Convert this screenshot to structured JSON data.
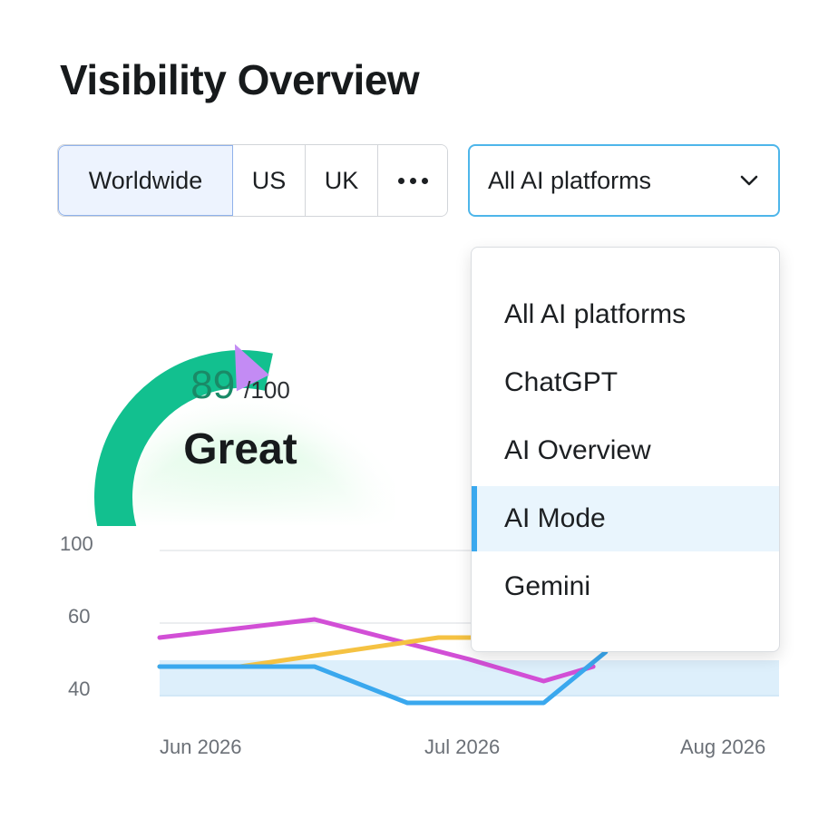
{
  "title": "Visibility Overview",
  "regions": {
    "items": [
      "Worldwide",
      "US",
      "UK"
    ],
    "active": "Worldwide"
  },
  "platform_select": {
    "selected": "All AI platforms"
  },
  "gauge": {
    "score": "89",
    "max": "/100",
    "rating": "Great",
    "score_fraction": 0.89
  },
  "menu": {
    "items": [
      "All AI platforms",
      "ChatGPT",
      "AI Overview",
      "AI Mode",
      "Gemini"
    ],
    "selected": "AI Mode"
  },
  "chart_data": {
    "type": "line",
    "x": [
      "Jun 2026",
      "Jul 2026",
      "Aug 2026"
    ],
    "yticks": [
      "100",
      "60",
      "40"
    ],
    "series": [
      {
        "color": "#d24fd6",
        "points": [
          [
            0,
            56
          ],
          [
            0.25,
            62
          ],
          [
            0.5,
            50
          ],
          [
            0.62,
            44
          ],
          [
            0.7,
            48
          ]
        ]
      },
      {
        "color": "#f5c242",
        "points": [
          [
            0,
            48
          ],
          [
            0.13,
            48
          ],
          [
            0.45,
            56
          ],
          [
            0.58,
            56
          ]
        ]
      },
      {
        "color": "#3aa8ee",
        "points": [
          [
            0,
            48
          ],
          [
            0.25,
            48
          ],
          [
            0.4,
            38
          ],
          [
            0.62,
            38
          ],
          [
            0.72,
            52
          ]
        ]
      }
    ],
    "colors": {
      "area": "#ddeffb"
    }
  }
}
